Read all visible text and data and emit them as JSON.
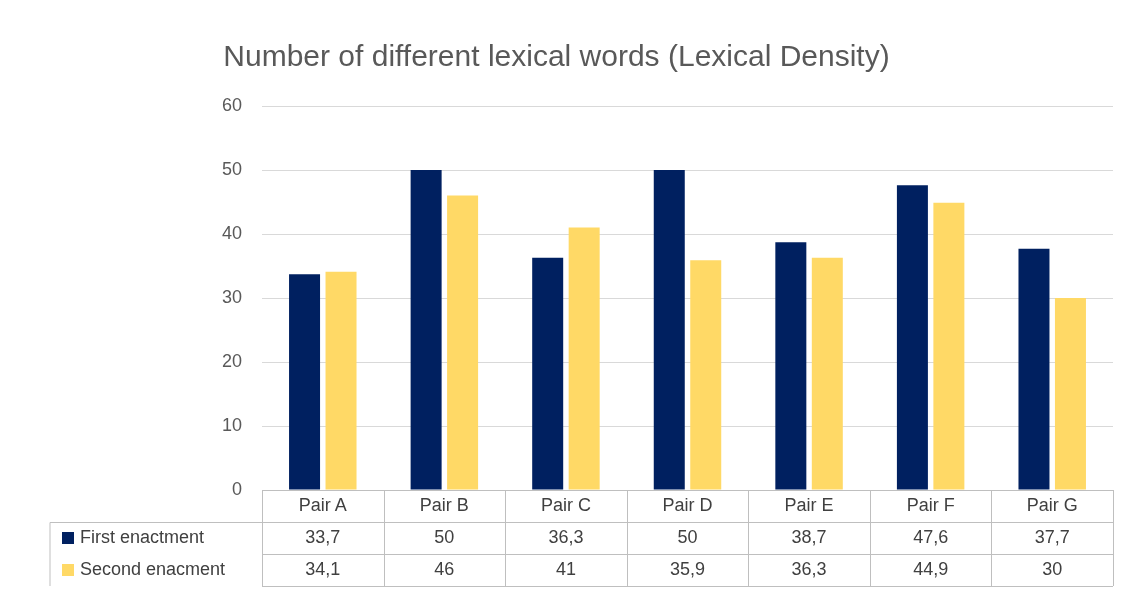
{
  "chart_data": {
    "type": "bar",
    "title": "Number of different lexical words (Lexical Density)",
    "categories": [
      "Pair A",
      "Pair B",
      "Pair C",
      "Pair D",
      "Pair E",
      "Pair F",
      "Pair G"
    ],
    "series": [
      {
        "name": "First enactment",
        "color": "#002060",
        "values": [
          33.7,
          50,
          36.3,
          50,
          38.7,
          47.6,
          37.7
        ],
        "value_labels": [
          "33,7",
          "50",
          "36,3",
          "50",
          "38,7",
          "47,6",
          "37,7"
        ]
      },
      {
        "name": "Second enacment",
        "color": "#ffd966",
        "values": [
          34.1,
          46,
          41,
          35.9,
          36.3,
          44.9,
          30
        ],
        "value_labels": [
          "34,1",
          "46",
          "41",
          "35,9",
          "36,3",
          "44,9",
          "30"
        ]
      }
    ],
    "ylim": [
      0,
      60
    ],
    "yticks": [
      0,
      10,
      20,
      30,
      40,
      50,
      60
    ],
    "grid": "y",
    "legend": "bottom"
  }
}
